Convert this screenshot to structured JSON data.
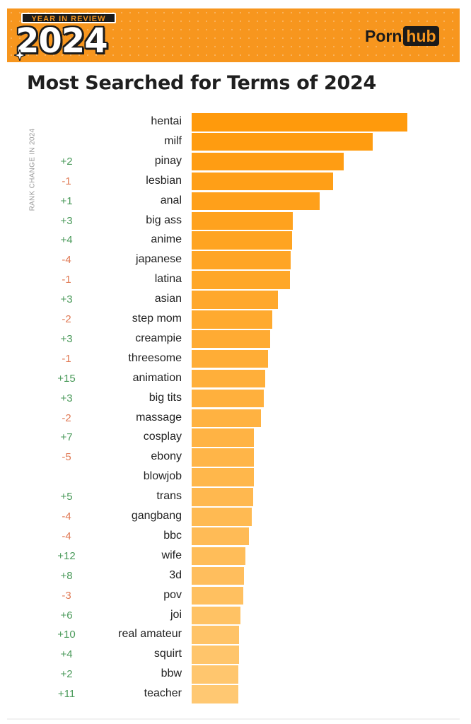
{
  "header": {
    "badge_top": "YEAR IN REVIEW",
    "badge_year": "2024",
    "logo_left": "Porn",
    "logo_right": "hub",
    "accent_color": "#f7961e"
  },
  "chart_data": {
    "type": "bar",
    "orientation": "horizontal",
    "title": "Most Searched for Terms of 2024",
    "side_label": "RANK CHANGE IN 2024",
    "xlim": [
      0,
      100
    ],
    "categories": [
      "hentai",
      "milf",
      "pinay",
      "lesbian",
      "anal",
      "big ass",
      "anime",
      "japanese",
      "latina",
      "asian",
      "step mom",
      "creampie",
      "threesome",
      "animation",
      "big tits",
      "massage",
      "cosplay",
      "ebony",
      "blowjob",
      "trans",
      "gangbang",
      "bbc",
      "wife",
      "3d",
      "pov",
      "joi",
      "real amateur",
      "squirt",
      "bbw",
      "teacher"
    ],
    "values": [
      100,
      84,
      70.5,
      65.5,
      59.5,
      47,
      46.5,
      46,
      45.5,
      40,
      37.5,
      36.5,
      35.5,
      34,
      33.5,
      32,
      29,
      28.8,
      28.7,
      28.5,
      28,
      26.5,
      25,
      24.2,
      24,
      22.5,
      22,
      22,
      21.8,
      21.5
    ],
    "rank_changes": [
      "",
      "",
      "+2",
      "-1",
      "+1",
      "+3",
      "+4",
      "-4",
      "-1",
      "+3",
      "-2",
      "+3",
      "-1",
      "+15",
      "+3",
      "-2",
      "+7",
      "-5",
      "",
      "+5",
      "-4",
      "-4",
      "+12",
      "+8",
      "-3",
      "+6",
      "+10",
      "+4",
      "+2",
      "+11"
    ],
    "colors": {
      "bar_start": "#ff9a0c",
      "bar_end": "#ffc872",
      "change_up": "#4a9a5a",
      "change_down": "#e07a55"
    },
    "grid": false,
    "legend": "none"
  }
}
